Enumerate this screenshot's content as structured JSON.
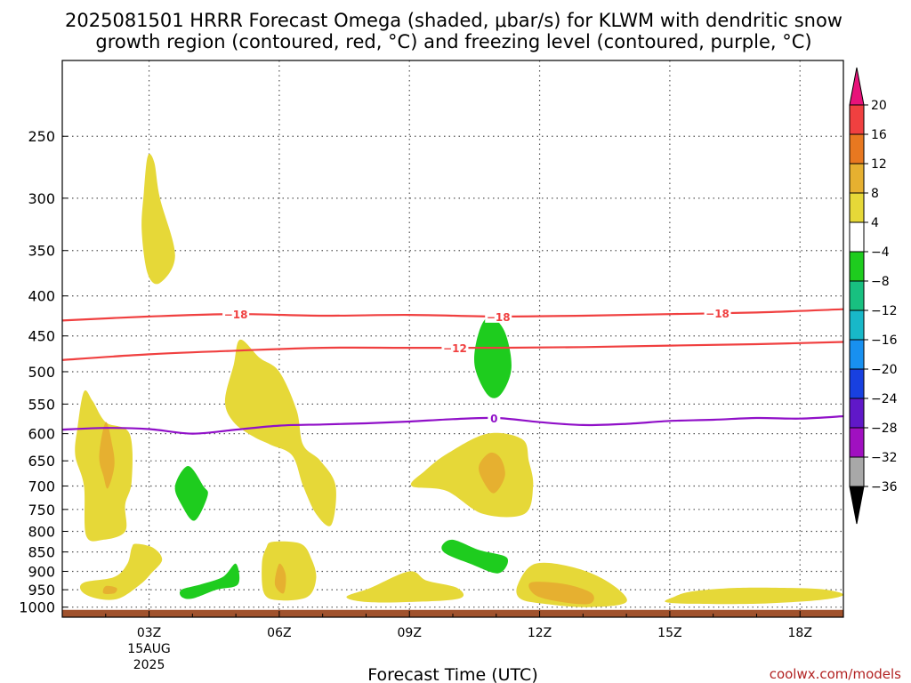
{
  "title": {
    "line1": "2025081501 HRRR Forecast Omega (shaded, μbar/s) for KLWM with dendritic snow",
    "line2": "growth region (contoured, red, °C) and freezing level (contoured, purple, °C)"
  },
  "xlabel": "Forecast Time (UTC)",
  "credit": "coolwx.com/models",
  "chart_data": {
    "type": "heatmap",
    "x_unit": "forecast hour (UTC)",
    "y_unit": "pressure (mb)",
    "xlim": [
      1,
      19
    ],
    "ylim": [
      1030,
      200
    ],
    "y_scale": "log",
    "grid": true,
    "y_ticks": [
      250,
      300,
      350,
      400,
      450,
      500,
      550,
      600,
      650,
      700,
      750,
      800,
      850,
      900,
      950,
      1000
    ],
    "x_ticks": [
      {
        "x": 3,
        "label": "03Z",
        "sub1": "15AUG",
        "sub2": "2025"
      },
      {
        "x": 6,
        "label": "06Z"
      },
      {
        "x": 9,
        "label": "09Z"
      },
      {
        "x": 12,
        "label": "12Z"
      },
      {
        "x": 15,
        "label": "15Z"
      },
      {
        "x": 18,
        "label": "18Z"
      }
    ],
    "colorbar": {
      "labels": [
        "20",
        "16",
        "12",
        "8",
        "4",
        "−4",
        "−8",
        "−12",
        "−16",
        "−20",
        "−24",
        "−28",
        "−32",
        "−36"
      ],
      "bins": [
        {
          "color": "#e8127a",
          "kind": "arrow-up"
        },
        {
          "color": "#f04040"
        },
        {
          "color": "#e87820"
        },
        {
          "color": "#e6b030"
        },
        {
          "color": "#e6d838"
        },
        {
          "color": "#ffffff"
        },
        {
          "color": "#1ecc1e"
        },
        {
          "color": "#18c080"
        },
        {
          "color": "#18b8c8"
        },
        {
          "color": "#1890f0"
        },
        {
          "color": "#1840e0"
        },
        {
          "color": "#6018c8"
        },
        {
          "color": "#a010c0"
        },
        {
          "color": "#a8a8a8"
        },
        {
          "color": "#000000",
          "kind": "arrow-down"
        }
      ]
    },
    "colors": {
      "omega_4_8": "#e6d838",
      "omega_8_12": "#e6b030",
      "omega_neg4_neg8": "#1ecc1e",
      "dgz_contour": "#f04040",
      "freezing_contour": "#9010c8",
      "terrain": "#a0522d"
    },
    "shaded_regions": [
      {
        "bin": "4 to 8",
        "points": [
          [
            2.97,
            265
          ],
          [
            3.12,
            270
          ],
          [
            3.25,
            300
          ],
          [
            3.6,
            355
          ],
          [
            3.25,
            385
          ],
          [
            2.97,
            375
          ],
          [
            2.83,
            330
          ],
          [
            2.88,
            295
          ]
        ]
      },
      {
        "bin": "4 to 8",
        "points": [
          [
            1.5,
            530
          ],
          [
            1.7,
            545
          ],
          [
            2.0,
            580
          ],
          [
            2.55,
            600
          ],
          [
            2.6,
            690
          ],
          [
            2.45,
            740
          ],
          [
            2.45,
            800
          ],
          [
            1.95,
            820
          ],
          [
            1.55,
            810
          ],
          [
            1.5,
            700
          ],
          [
            1.3,
            640
          ],
          [
            1.35,
            590
          ]
        ]
      },
      {
        "bin": "8 to 12",
        "points": [
          [
            2.0,
            580
          ],
          [
            2.15,
            620
          ],
          [
            2.2,
            660
          ],
          [
            2.05,
            705
          ],
          [
            1.95,
            680
          ],
          [
            1.85,
            640
          ]
        ]
      },
      {
        "bin": "4 to 8",
        "points": [
          [
            5.1,
            455
          ],
          [
            5.55,
            480
          ],
          [
            6.0,
            500
          ],
          [
            6.4,
            560
          ],
          [
            6.55,
            620
          ],
          [
            6.95,
            650
          ],
          [
            7.3,
            700
          ],
          [
            7.2,
            785
          ],
          [
            6.85,
            760
          ],
          [
            6.55,
            700
          ],
          [
            6.3,
            640
          ],
          [
            5.8,
            620
          ],
          [
            5.4,
            605
          ],
          [
            4.95,
            580
          ],
          [
            4.75,
            545
          ],
          [
            4.95,
            490
          ]
        ]
      },
      {
        "bin": "4 to 8",
        "points": [
          [
            9.9,
            635
          ],
          [
            10.8,
            600
          ],
          [
            11.6,
            610
          ],
          [
            11.75,
            650
          ],
          [
            11.85,
            700
          ],
          [
            11.65,
            760
          ],
          [
            10.7,
            760
          ],
          [
            9.85,
            710
          ],
          [
            9.05,
            700
          ],
          [
            9.35,
            670
          ]
        ]
      },
      {
        "bin": "8 to 12",
        "points": [
          [
            10.85,
            635
          ],
          [
            11.1,
            645
          ],
          [
            11.2,
            680
          ],
          [
            10.95,
            715
          ],
          [
            10.7,
            690
          ],
          [
            10.6,
            660
          ]
        ]
      },
      {
        "bin": "4 to 8",
        "points": [
          [
            2.7,
            830
          ],
          [
            3.1,
            840
          ],
          [
            3.3,
            870
          ],
          [
            3.05,
            905
          ],
          [
            2.8,
            935
          ],
          [
            2.3,
            975
          ],
          [
            1.8,
            975
          ],
          [
            1.45,
            955
          ],
          [
            1.5,
            930
          ],
          [
            2.2,
            915
          ],
          [
            2.5,
            880
          ],
          [
            2.6,
            840
          ]
        ]
      },
      {
        "bin": "8 to 12",
        "points": [
          [
            2.0,
            940
          ],
          [
            2.25,
            945
          ],
          [
            2.2,
            960
          ],
          [
            1.95,
            960
          ]
        ]
      },
      {
        "bin": "4 to 8",
        "points": [
          [
            5.85,
            825
          ],
          [
            6.5,
            830
          ],
          [
            6.75,
            870
          ],
          [
            6.85,
            920
          ],
          [
            6.65,
            970
          ],
          [
            6.0,
            980
          ],
          [
            5.65,
            960
          ],
          [
            5.6,
            880
          ],
          [
            5.7,
            840
          ]
        ]
      },
      {
        "bin": "8 to 12",
        "points": [
          [
            6.0,
            880
          ],
          [
            6.15,
            910
          ],
          [
            6.1,
            960
          ],
          [
            5.9,
            935
          ]
        ]
      },
      {
        "bin": "4 to 8",
        "points": [
          [
            9.0,
            900
          ],
          [
            9.4,
            925
          ],
          [
            10.1,
            945
          ],
          [
            10.15,
            975
          ],
          [
            9.0,
            985
          ],
          [
            8.0,
            985
          ],
          [
            7.55,
            970
          ],
          [
            8.1,
            945
          ]
        ]
      },
      {
        "bin": "4 to 8",
        "points": [
          [
            11.9,
            880
          ],
          [
            12.8,
            890
          ],
          [
            13.6,
            930
          ],
          [
            14.0,
            985
          ],
          [
            13.1,
            1000
          ],
          [
            12.1,
            990
          ],
          [
            11.55,
            975
          ],
          [
            11.5,
            935
          ]
        ]
      },
      {
        "bin": "8 to 12",
        "points": [
          [
            11.8,
            930
          ],
          [
            12.6,
            935
          ],
          [
            13.2,
            960
          ],
          [
            13.15,
            990
          ],
          [
            12.5,
            985
          ],
          [
            11.9,
            965
          ]
        ]
      },
      {
        "bin": "4 to 8",
        "points": [
          [
            15.5,
            955
          ],
          [
            16.5,
            945
          ],
          [
            17.8,
            945
          ],
          [
            18.6,
            950
          ],
          [
            19.0,
            965
          ],
          [
            18.4,
            980
          ],
          [
            17.0,
            990
          ],
          [
            15.5,
            990
          ],
          [
            14.9,
            985
          ],
          [
            15.1,
            970
          ]
        ]
      },
      {
        "bin": "-4 to -8",
        "points": [
          [
            10.85,
            425
          ],
          [
            11.2,
            445
          ],
          [
            11.35,
            495
          ],
          [
            11.1,
            535
          ],
          [
            10.8,
            535
          ],
          [
            10.5,
            490
          ],
          [
            10.6,
            445
          ]
        ]
      },
      {
        "bin": "-4 to -8",
        "points": [
          [
            3.9,
            660
          ],
          [
            4.25,
            700
          ],
          [
            4.35,
            720
          ],
          [
            4.05,
            775
          ],
          [
            3.75,
            740
          ],
          [
            3.6,
            700
          ]
        ]
      },
      {
        "bin": "-4 to -8",
        "points": [
          [
            5.0,
            880
          ],
          [
            5.05,
            935
          ],
          [
            4.55,
            950
          ],
          [
            4.0,
            975
          ],
          [
            3.75,
            970
          ],
          [
            3.75,
            950
          ],
          [
            4.2,
            935
          ],
          [
            4.7,
            915
          ]
        ]
      },
      {
        "bin": "-4 to -8",
        "points": [
          [
            10.0,
            820
          ],
          [
            10.6,
            845
          ],
          [
            11.25,
            865
          ],
          [
            11.05,
            905
          ],
          [
            10.4,
            880
          ],
          [
            9.85,
            855
          ],
          [
            9.75,
            835
          ]
        ]
      }
    ],
    "contours": [
      {
        "name": "dgz_-18",
        "value": "−18",
        "color": "#f04040",
        "label_x": [
          5.0,
          11.05,
          16.1
        ],
        "points": [
          [
            1,
            430
          ],
          [
            3,
            425
          ],
          [
            5,
            422
          ],
          [
            7,
            424
          ],
          [
            9,
            423
          ],
          [
            11,
            425
          ],
          [
            13,
            424
          ],
          [
            15,
            422
          ],
          [
            17,
            420
          ],
          [
            19,
            416
          ]
        ]
      },
      {
        "name": "dgz_-12",
        "value": "−12",
        "color": "#f04040",
        "label_x": [
          10.05
        ],
        "points": [
          [
            1,
            483
          ],
          [
            3,
            475
          ],
          [
            5,
            470
          ],
          [
            7,
            466
          ],
          [
            9,
            466
          ],
          [
            11,
            466
          ],
          [
            13,
            465
          ],
          [
            15,
            463
          ],
          [
            17,
            461
          ],
          [
            19,
            458
          ]
        ]
      },
      {
        "name": "freezing_0",
        "value": "0",
        "color": "#9010c8",
        "label_x": [
          10.95
        ],
        "points": [
          [
            1,
            593
          ],
          [
            2,
            590
          ],
          [
            3,
            592
          ],
          [
            4,
            600
          ],
          [
            5,
            593
          ],
          [
            6,
            586
          ],
          [
            7,
            584
          ],
          [
            8,
            582
          ],
          [
            9,
            579
          ],
          [
            10,
            575
          ],
          [
            11,
            573
          ],
          [
            12,
            580
          ],
          [
            13,
            585
          ],
          [
            14,
            583
          ],
          [
            15,
            578
          ],
          [
            16,
            576
          ],
          [
            17,
            573
          ],
          [
            18,
            574
          ],
          [
            19,
            570
          ]
        ]
      }
    ],
    "terrain": {
      "color": "#a0522d",
      "top_pressure": 1008
    }
  }
}
